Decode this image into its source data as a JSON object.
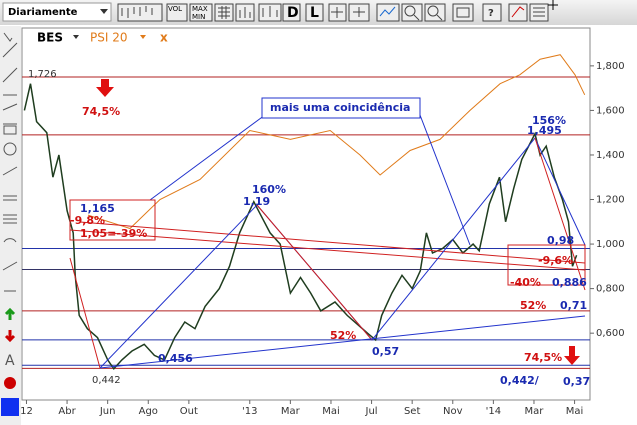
{
  "toolbar": {
    "period": "Diariamente",
    "buttons": [
      "VOL",
      "MAX",
      "MIN",
      "D",
      "L"
    ]
  },
  "chart_data": {
    "type": "line",
    "legend": [
      "BES",
      "PSI 20",
      "x"
    ],
    "xlim": [
      0.78,
      28.76
    ],
    "xticks": [
      {
        "value": 1,
        "label": "12"
      },
      {
        "value": 3,
        "label": "Abr"
      },
      {
        "value": 5,
        "label": "Jun"
      },
      {
        "value": 7,
        "label": "Ago"
      },
      {
        "value": 9,
        "label": "Out"
      },
      {
        "value": 12,
        "label": "'13"
      },
      {
        "value": 14,
        "label": "Mar"
      },
      {
        "value": 16,
        "label": "Mai"
      },
      {
        "value": 18,
        "label": "Jul"
      },
      {
        "value": 20,
        "label": "Set"
      },
      {
        "value": 22,
        "label": "Nov"
      },
      {
        "value": 24,
        "label": "'14"
      },
      {
        "value": 26,
        "label": "Mar"
      },
      {
        "value": 28,
        "label": "Mai"
      }
    ],
    "ylim": [
      0.3,
      1.97
    ],
    "yticks": [
      {
        "value": 0.6,
        "label": "0,600"
      },
      {
        "value": 0.8,
        "label": "0,800"
      },
      {
        "value": 1.0,
        "label": "1,000"
      },
      {
        "value": 1.2,
        "label": "1,200"
      },
      {
        "value": 1.4,
        "label": "1,400"
      },
      {
        "value": 1.6,
        "label": "1,600"
      },
      {
        "value": 1.8,
        "label": "1,800"
      }
    ],
    "series": [
      {
        "name": "BES",
        "color": "#1f3d1f",
        "x": [
          0.9,
          1.2,
          1.5,
          2.0,
          2.3,
          2.6,
          3.0,
          3.3,
          3.4,
          3.6,
          4.0,
          4.5,
          5.0,
          5.3,
          5.7,
          6.2,
          6.8,
          7.3,
          7.8,
          8.3,
          8.8,
          9.3,
          9.8,
          10.5,
          11.0,
          11.5,
          12.2,
          12.6,
          13.0,
          13.5,
          14.0,
          14.5,
          15.0,
          15.5,
          16.2,
          16.8,
          17.3,
          17.8,
          18.2,
          18.5,
          19.0,
          19.5,
          20.0,
          20.4,
          20.7,
          21.0,
          21.5,
          22.0,
          22.5,
          23.0,
          23.3,
          23.8,
          24.3,
          24.6,
          25.0,
          25.4,
          26.05,
          26.3,
          26.6,
          27.0,
          27.4,
          27.7,
          27.9,
          28.1
        ],
        "values": [
          1.6,
          1.72,
          1.55,
          1.5,
          1.3,
          1.4,
          1.15,
          1.05,
          0.86,
          0.68,
          0.62,
          0.58,
          0.48,
          0.44,
          0.48,
          0.52,
          0.55,
          0.5,
          0.48,
          0.58,
          0.65,
          0.62,
          0.72,
          0.8,
          0.9,
          1.05,
          1.19,
          1.12,
          1.05,
          1.0,
          0.78,
          0.85,
          0.78,
          0.7,
          0.74,
          0.68,
          0.64,
          0.6,
          0.57,
          0.68,
          0.78,
          0.86,
          0.8,
          0.88,
          1.05,
          0.96,
          0.98,
          1.02,
          0.96,
          1.0,
          0.97,
          1.18,
          1.3,
          1.1,
          1.25,
          1.38,
          1.495,
          1.4,
          1.44,
          1.3,
          1.2,
          1.1,
          0.9,
          0.95
        ]
      },
      {
        "name": "PSI 20",
        "color": "#e07b1a",
        "x": [
          4.03,
          6.1,
          7.58,
          9.55,
          12.0,
          14.0,
          15.96,
          17.43,
          18.42,
          19.9,
          21.37,
          22.85,
          24.33,
          25.3,
          26.3,
          27.29,
          28.02,
          28.5
        ],
        "values": [
          1.13,
          1.07,
          1.2,
          1.29,
          1.51,
          1.47,
          1.51,
          1.4,
          1.31,
          1.42,
          1.47,
          1.6,
          1.72,
          1.76,
          1.83,
          1.85,
          1.76,
          1.67
        ]
      }
    ],
    "hlines": [
      {
        "value": 1.75,
        "color": "#b22222"
      },
      {
        "value": 1.49,
        "color": "#b22222"
      },
      {
        "value": 0.98,
        "color": "#2233aa"
      },
      {
        "value": 0.886,
        "color": "#333366"
      },
      {
        "value": 0.7,
        "color": "#b22222"
      },
      {
        "value": 0.57,
        "color": "#2233aa"
      },
      {
        "value": 0.456,
        "color": "#2233aa"
      },
      {
        "value": 0.442,
        "color": "#b22222"
      }
    ],
    "annotations": [
      {
        "text": "1,726",
        "color": "#333"
      },
      {
        "text": "74,5%",
        "color": "#d01010"
      },
      {
        "text": "mais uma coincidência",
        "color": "#1a2ab0"
      },
      {
        "text": "156%",
        "color": "#1a2ab0"
      },
      {
        "text": "1,495",
        "color": "#1a2ab0"
      },
      {
        "text": "160%",
        "color": "#1a2ab0"
      },
      {
        "text": "1,19",
        "color": "#1a2ab0"
      },
      {
        "text": "1,165",
        "color": "#1a2ab0"
      },
      {
        "text": "-9,8%",
        "color": "#d01010"
      },
      {
        "text": "1,05=-39%",
        "color": "#d01010"
      },
      {
        "text": "0,98",
        "color": "#1a2ab0"
      },
      {
        "text": "-9,6%",
        "color": "#d01010"
      },
      {
        "text": "-40%",
        "color": "#d01010"
      },
      {
        "text": "0,886",
        "color": "#1a2ab0"
      },
      {
        "text": "52%",
        "color": "#d01010"
      },
      {
        "text": "0,71",
        "color": "#1a2ab0"
      },
      {
        "text": "52%",
        "color": "#d01010"
      },
      {
        "text": "0,57",
        "color": "#1a2ab0"
      },
      {
        "text": "0,456",
        "color": "#1a2ab0"
      },
      {
        "text": "0,442",
        "color": "#333"
      },
      {
        "text": "74,5%",
        "color": "#d01010"
      },
      {
        "text": "0,442/",
        "color": "#1a2ab0"
      },
      {
        "text": "0,37",
        "color": "#1a2ab0"
      }
    ]
  }
}
